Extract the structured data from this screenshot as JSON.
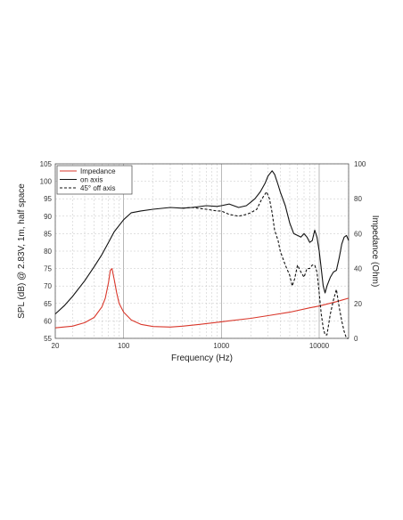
{
  "chart_data": {
    "type": "line",
    "xlabel": "Frequency (Hz)",
    "ylabel_left": "SPL (dB) @ 2.83V, 1m, half space",
    "ylabel_right": "Impedance (Ohm)",
    "x_scale": "log",
    "xlim": [
      20,
      20000
    ],
    "ylim_left": [
      55,
      105
    ],
    "ylim_right": [
      0,
      100
    ],
    "x_tick_labels": [
      "20",
      "100",
      "1000",
      "10000"
    ],
    "x_tick_values": [
      20,
      100,
      1000,
      10000
    ],
    "y_left_ticks": [
      55,
      60,
      65,
      70,
      75,
      80,
      85,
      90,
      95,
      100,
      105
    ],
    "y_right_ticks": [
      0,
      20,
      40,
      60,
      80,
      100
    ],
    "grid": true,
    "legend_placement": "top-left",
    "series": [
      {
        "name": "Impedance",
        "axis": "right",
        "color": "#d9372b",
        "dash": "solid",
        "points": [
          [
            20,
            6
          ],
          [
            30,
            7
          ],
          [
            40,
            9
          ],
          [
            50,
            12
          ],
          [
            60,
            18
          ],
          [
            65,
            23
          ],
          [
            70,
            32
          ],
          [
            73,
            39
          ],
          [
            76,
            40
          ],
          [
            80,
            34
          ],
          [
            85,
            26
          ],
          [
            90,
            20
          ],
          [
            100,
            15
          ],
          [
            120,
            10.5
          ],
          [
            150,
            8
          ],
          [
            200,
            6.8
          ],
          [
            300,
            6.5
          ],
          [
            400,
            7
          ],
          [
            600,
            8
          ],
          [
            1000,
            9.5
          ],
          [
            2000,
            11.5
          ],
          [
            3000,
            13
          ],
          [
            5000,
            15
          ],
          [
            8000,
            17.5
          ],
          [
            10000,
            18.5
          ],
          [
            15000,
            21
          ],
          [
            20000,
            23
          ]
        ]
      },
      {
        "name": "on axis",
        "axis": "left",
        "color": "#111111",
        "dash": "solid",
        "points": [
          [
            20,
            62
          ],
          [
            25,
            64.5
          ],
          [
            30,
            67
          ],
          [
            40,
            71.5
          ],
          [
            50,
            75.5
          ],
          [
            60,
            79
          ],
          [
            70,
            82.5
          ],
          [
            80,
            85.5
          ],
          [
            100,
            89
          ],
          [
            120,
            91
          ],
          [
            150,
            91.5
          ],
          [
            200,
            92
          ],
          [
            300,
            92.5
          ],
          [
            400,
            92.3
          ],
          [
            500,
            92.5
          ],
          [
            700,
            93
          ],
          [
            900,
            92.8
          ],
          [
            1000,
            93
          ],
          [
            1200,
            93.5
          ],
          [
            1500,
            92.5
          ],
          [
            1800,
            93
          ],
          [
            2000,
            94
          ],
          [
            2200,
            95
          ],
          [
            2500,
            97
          ],
          [
            2800,
            99.5
          ],
          [
            3000,
            101.5
          ],
          [
            3300,
            103
          ],
          [
            3500,
            102
          ],
          [
            3800,
            99
          ],
          [
            4000,
            97
          ],
          [
            4500,
            93
          ],
          [
            5000,
            88
          ],
          [
            5500,
            85
          ],
          [
            6000,
            84.5
          ],
          [
            6500,
            84
          ],
          [
            7000,
            85
          ],
          [
            7500,
            84
          ],
          [
            8000,
            82.5
          ],
          [
            8500,
            83
          ],
          [
            9000,
            86
          ],
          [
            9500,
            84
          ],
          [
            10000,
            80
          ],
          [
            10500,
            75
          ],
          [
            11000,
            70
          ],
          [
            11500,
            68
          ],
          [
            12000,
            70
          ],
          [
            13000,
            72.5
          ],
          [
            14000,
            74
          ],
          [
            15000,
            74.5
          ],
          [
            16000,
            78
          ],
          [
            17000,
            82
          ],
          [
            18000,
            84
          ],
          [
            19000,
            84.5
          ],
          [
            20000,
            83
          ]
        ]
      },
      {
        "name": "45° off axis",
        "axis": "left",
        "color": "#111111",
        "dash": "dashed",
        "points": [
          [
            400,
            92.3
          ],
          [
            500,
            92.5
          ],
          [
            700,
            92
          ],
          [
            900,
            91.5
          ],
          [
            1000,
            91.5
          ],
          [
            1200,
            90.5
          ],
          [
            1500,
            90
          ],
          [
            1800,
            90.5
          ],
          [
            2000,
            91
          ],
          [
            2300,
            92
          ],
          [
            2600,
            95
          ],
          [
            2900,
            97
          ],
          [
            3100,
            95
          ],
          [
            3300,
            91
          ],
          [
            3500,
            86
          ],
          [
            3800,
            83
          ],
          [
            4000,
            80
          ],
          [
            4500,
            76
          ],
          [
            5000,
            73
          ],
          [
            5300,
            70
          ],
          [
            5600,
            72
          ],
          [
            6000,
            76
          ],
          [
            6500,
            74
          ],
          [
            7000,
            72.5
          ],
          [
            7500,
            75
          ],
          [
            8000,
            75
          ],
          [
            8500,
            76
          ],
          [
            9000,
            76
          ],
          [
            9500,
            74
          ],
          [
            10000,
            68
          ],
          [
            10500,
            62
          ],
          [
            11000,
            58
          ],
          [
            11500,
            56
          ],
          [
            12000,
            56
          ],
          [
            13000,
            62
          ],
          [
            14000,
            66
          ],
          [
            15000,
            69
          ],
          [
            16000,
            64
          ],
          [
            17000,
            60
          ],
          [
            18000,
            57
          ],
          [
            19000,
            55
          ],
          [
            20000,
            55
          ]
        ]
      }
    ]
  }
}
